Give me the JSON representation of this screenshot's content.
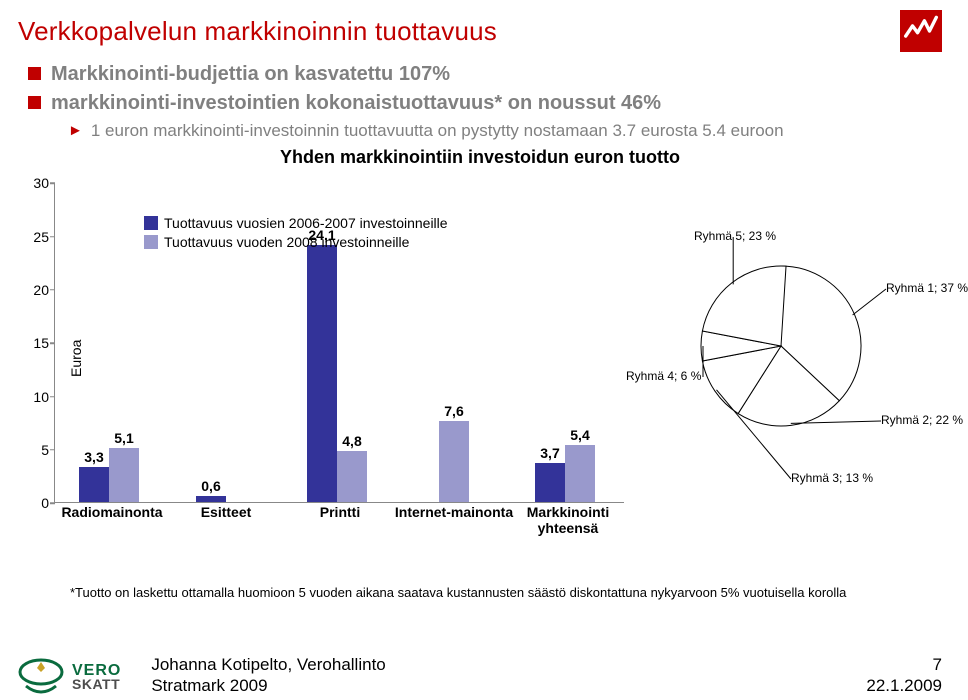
{
  "title": "Verkkopalvelun markkinoinnin tuottavuus",
  "bullets": [
    "Markkinointi-budjettia on kasvatettu 107%",
    "markkinointi-investointien kokonaistuottavuus* on noussut 46%"
  ],
  "sub_bullet": "1 euron markkinointi-investoinnin tuottavuutta on pystytty nostamaan 3.7 eurosta 5.4 euroon",
  "chart": {
    "title": "Yhden markkinointiin investoidun euron tuotto",
    "type": "bar",
    "y_label": "Euroa",
    "ylim": [
      0,
      30
    ],
    "ytick_step": 5,
    "label_fontsize": 14,
    "title_fontsize": 18,
    "series": [
      {
        "name": "Tuottavuus vuosien 2006-2007 investoinneille",
        "color": "#333399"
      },
      {
        "name": "Tuottavuus vuoden 2008 investoinneille",
        "color": "#9999cc"
      }
    ],
    "categories": [
      "Radiomainonta",
      "Esitteet",
      "Printti",
      "Internet-mainonta",
      "Markkinointi\nyhteensä"
    ],
    "values_a": [
      3.3,
      0.6,
      24.1,
      null,
      3.7
    ],
    "values_b": [
      5.1,
      null,
      4.8,
      7.6,
      5.4
    ],
    "background_color": "#ffffff",
    "axis_color": "#888888"
  },
  "pie": {
    "type": "pie",
    "slices": [
      {
        "label": "Ryhmä 1; 37 %",
        "value": 37,
        "color": "#ffffff"
      },
      {
        "label": "Ryhmä 2; 22 %",
        "value": 22,
        "color": "#ffffff"
      },
      {
        "label": "Ryhmä 3; 13 %",
        "value": 13,
        "color": "#ffffff"
      },
      {
        "label": "Ryhmä 4; 6 %",
        "value": 6,
        "color": "#ffffff"
      },
      {
        "label": "Ryhmä 5; 23 %",
        "value": 23,
        "color": "#ffffff"
      }
    ],
    "stroke": "#000000"
  },
  "footnote": "*Tuotto on laskettu ottamalla huomioon 5 vuoden aikana saatava kustannusten säästö diskontattuna nykyarvoon 5% vuotuisella korolla",
  "footer": {
    "logo_top": "VERO",
    "logo_bottom": "SKATT",
    "author": "Johanna Kotipelto, Verohallinto",
    "event": "Stratmark 2009",
    "page": "7",
    "date": "22.1.2009",
    "logo_color_top": "#0a6b3e",
    "logo_color_bottom": "#4d4d4d"
  }
}
